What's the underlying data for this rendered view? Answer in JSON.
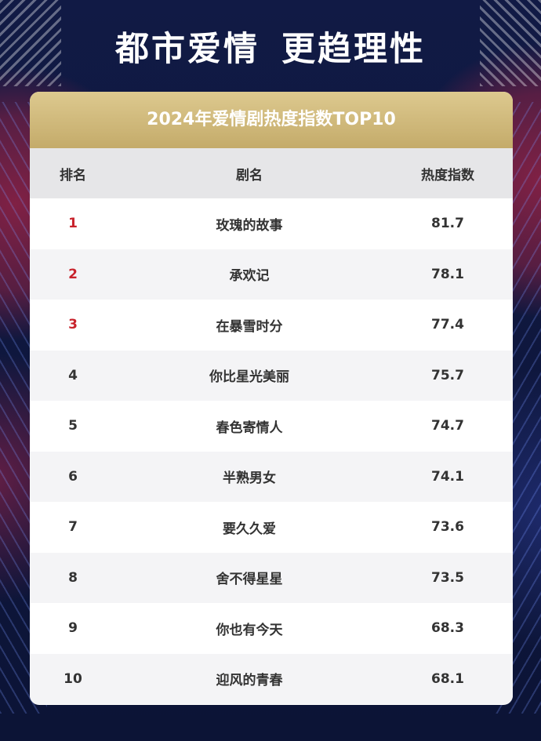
{
  "headline": {
    "part1": "都市爱情",
    "part2": "更趋理性"
  },
  "colors": {
    "background": "#0d1436",
    "title_gold": "#d4bc7d",
    "header_gray": "#e6e6e8",
    "top3_red": "#c8232c"
  },
  "chart_data": {
    "type": "table",
    "title": "2024年爱情剧热度指数TOP10",
    "columns": [
      "排名",
      "剧名",
      "热度指数"
    ],
    "rows": [
      {
        "rank": "1",
        "name": "玫瑰的故事",
        "score": "81.7"
      },
      {
        "rank": "2",
        "name": "承欢记",
        "score": "78.1"
      },
      {
        "rank": "3",
        "name": "在暴雪时分",
        "score": "77.4"
      },
      {
        "rank": "4",
        "name": "你比星光美丽",
        "score": "75.7"
      },
      {
        "rank": "5",
        "name": "春色寄情人",
        "score": "74.7"
      },
      {
        "rank": "6",
        "name": "半熟男女",
        "score": "74.1"
      },
      {
        "rank": "7",
        "name": "要久久爱",
        "score": "73.6"
      },
      {
        "rank": "8",
        "name": "舍不得星星",
        "score": "73.5"
      },
      {
        "rank": "9",
        "name": "你也有今天",
        "score": "68.3"
      },
      {
        "rank": "10",
        "name": "迎风的青春",
        "score": "68.1"
      }
    ]
  }
}
